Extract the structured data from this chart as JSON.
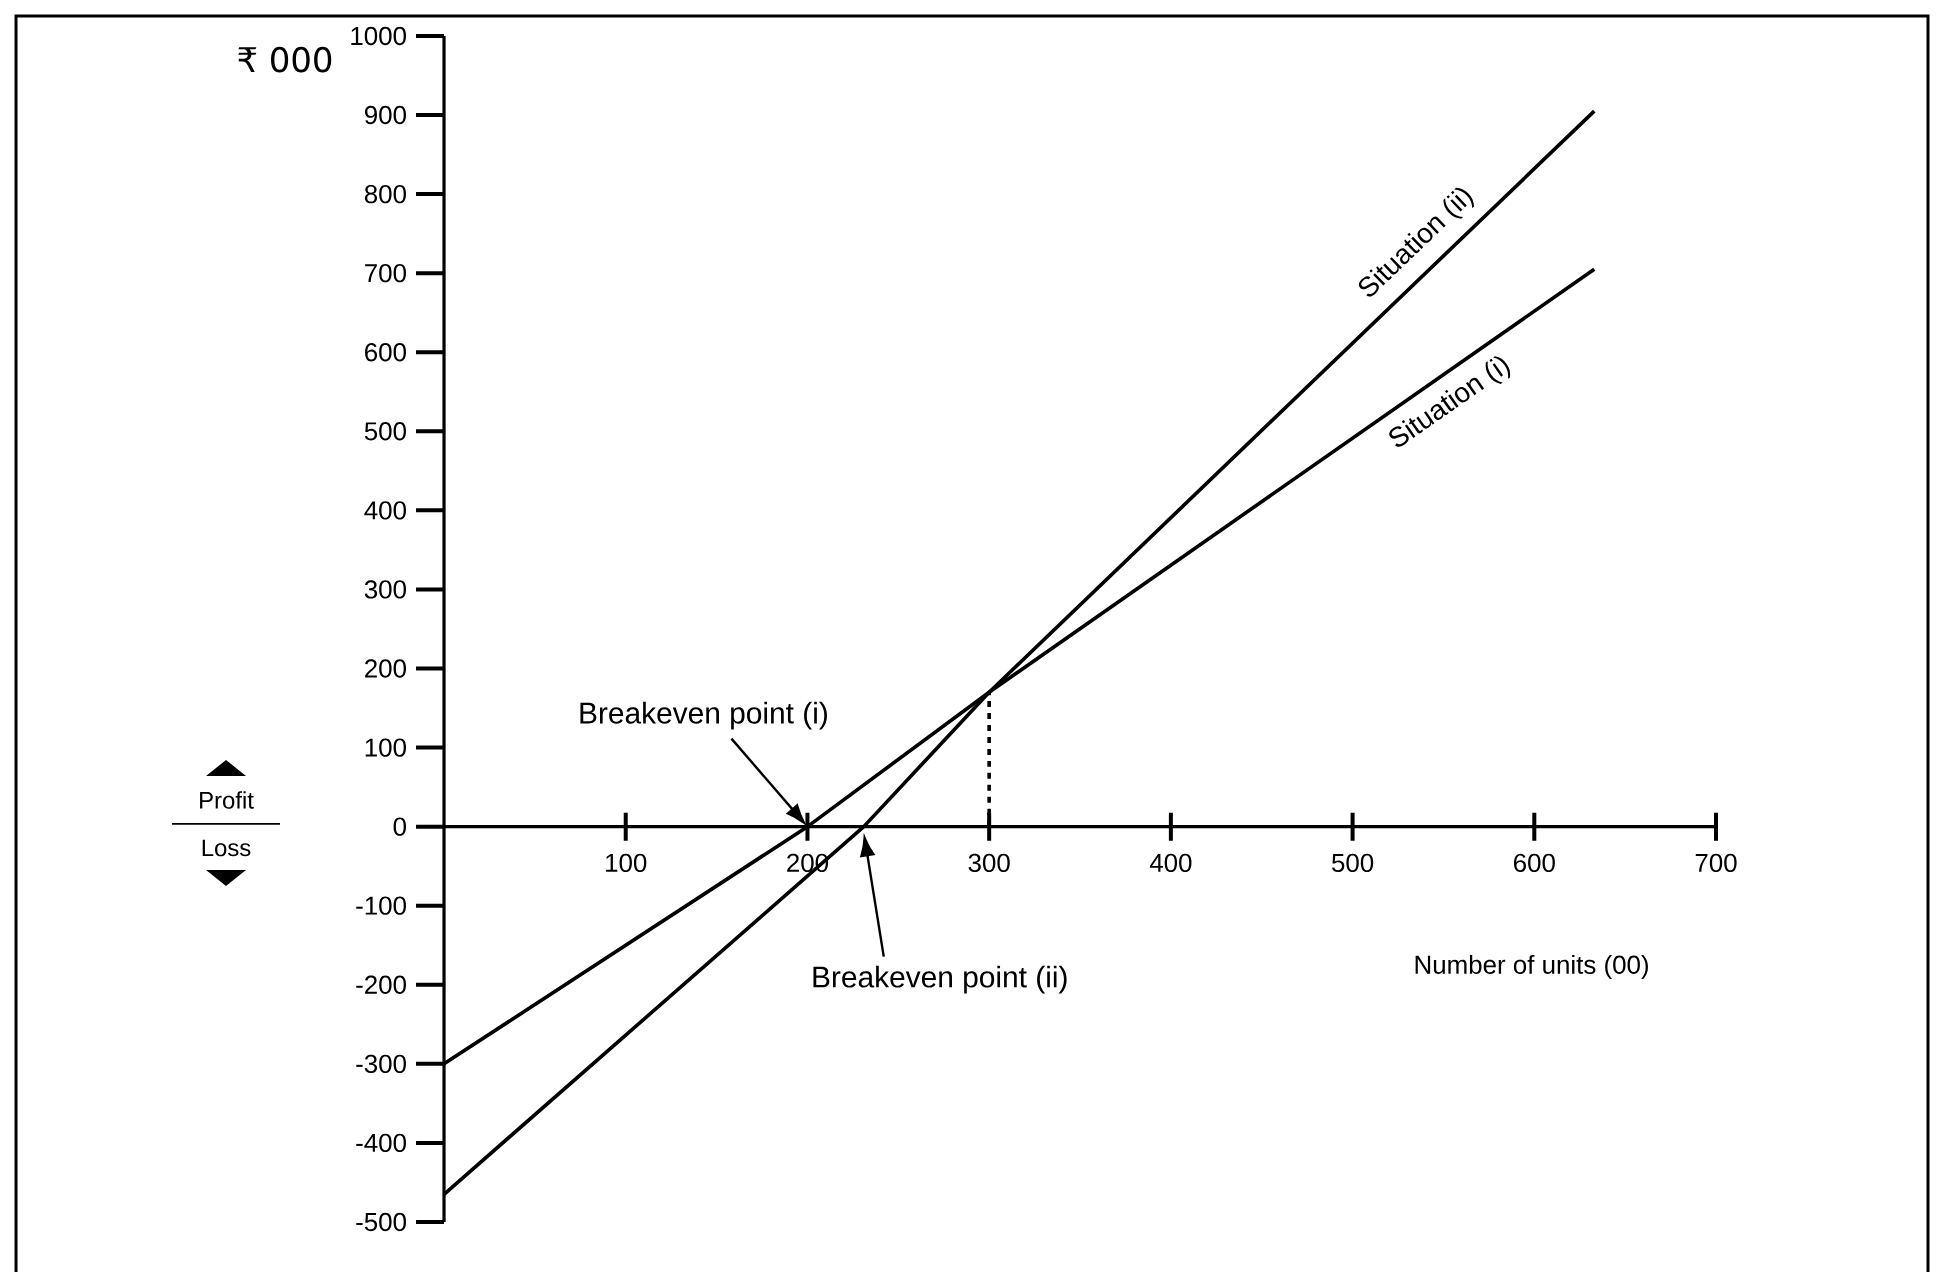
{
  "chart_data": {
    "type": "line",
    "xlabel": "Number of units (00)",
    "ylabel": "₹ 000",
    "xlim": [
      0,
      700
    ],
    "xticks": [
      100,
      200,
      300,
      400,
      500,
      600,
      700
    ],
    "ylim": [
      -500,
      1000
    ],
    "yticks": [
      -500,
      -400,
      -300,
      -200,
      -100,
      0,
      100,
      200,
      300,
      400,
      500,
      600,
      700,
      800,
      900,
      1000
    ],
    "series": [
      {
        "name": "Situation (i)",
        "color": "#000000",
        "x": [
          0,
          200,
          300,
          633
        ],
        "values": [
          -300,
          0,
          170,
          705
        ]
      },
      {
        "name": "Situation (ii)",
        "color": "#000000",
        "x": [
          0,
          231,
          300,
          633
        ],
        "values": [
          -465,
          0,
          170,
          905
        ]
      },
      {
        "color": "#000000",
        "line_style": "dashed",
        "x": [
          300,
          300
        ],
        "values": [
          0,
          170
        ]
      }
    ],
    "annotations": [
      "Breakeven point (i)",
      "Breakeven point (ii)",
      "Profit",
      "Loss"
    ]
  }
}
